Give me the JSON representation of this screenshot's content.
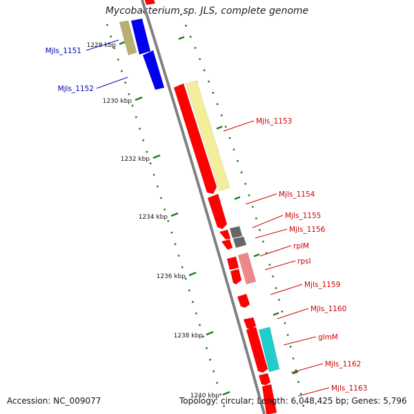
{
  "title": "Mycobacterium sp. JLS, complete genome",
  "footer": {
    "accession": "Accession: NC_009077",
    "topology": "Topology: circular; Length: 6,048,425 bp; Genes: 5,796"
  },
  "colors": {
    "backbone": "#808080",
    "tick": "#1a7a1a",
    "label_forward": "#cc0000",
    "label_reverse": "#0000aa",
    "gene_red": "#ff0000",
    "gene_blue": "#0000ee",
    "gene_olive": "#b8b070",
    "gene_yellow": "#f3ee9a",
    "gene_gray": "#666666",
    "gene_pink": "#ee8888",
    "gene_cyan": "#22cccc"
  },
  "scale_labels": [
    "1228 kbp",
    "1230 kbp",
    "1232 kbp",
    "1234 kbp",
    "1236 kbp",
    "1238 kbp",
    "1240 kbp"
  ],
  "gene_labels_left": [
    "Mjls_1151",
    "Mjls_1152"
  ],
  "gene_labels_right": [
    "Mjls_1153",
    "Mjls_1154",
    "Mjls_1155",
    "Mjls_1156",
    "rplM",
    "rpsI",
    "Mjls_1159",
    "Mjls_1160",
    "glmM",
    "Mjls_1162",
    "Mjls_1163"
  ]
}
